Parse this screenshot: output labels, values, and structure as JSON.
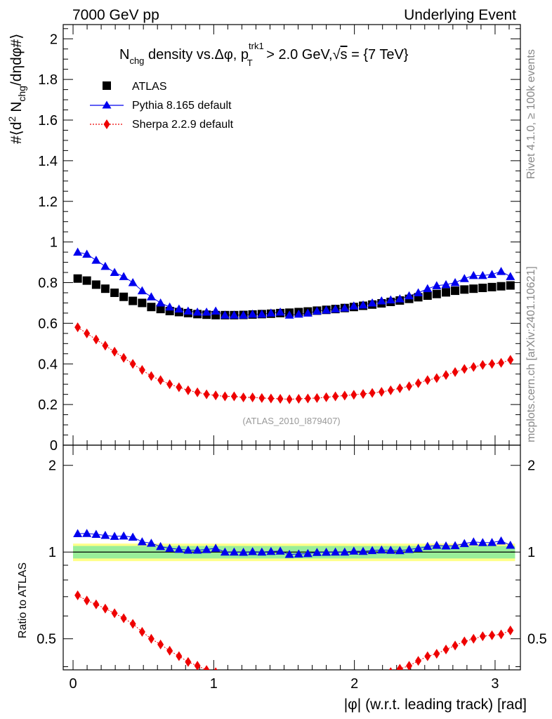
{
  "header": {
    "left": "7000 GeV pp",
    "right": "Underlying Event"
  },
  "side_text": {
    "rivet": "Rivet 4.1.0, ≥ 100k events",
    "mcplots": "mcplots.cern.ch [arXiv:2401.10621]"
  },
  "title": {
    "n": "N",
    "chg_sub": "chg",
    "mid": " density vs.Δφ, p",
    "trk_sup": "trk1",
    "T_sub": "T",
    "cut": " > 2.0 GeV,",
    "sqrt": "√",
    "s": "s",
    "energy": " = {7 TeV}"
  },
  "analysis_tag": "(ATLAS_2010_I879407)",
  "ylabel_top": {
    "pre": "#⟨d",
    "two": "2",
    "n": " N",
    "chg": "chg",
    "post": "/dηdφ#⟩"
  },
  "ylabel_bottom": "Ratio to ATLAS",
  "xlabel": "|φ| (w.r.t. leading track) [rad]",
  "legend": [
    {
      "name": "ATLAS",
      "color": "#000000",
      "marker": "square"
    },
    {
      "name": "Pythia 8.165 default",
      "color": "#0000ee",
      "marker": "triangle"
    },
    {
      "name": "Sherpa 2.2.9 default",
      "color": "#ee0000",
      "marker": "diamond"
    }
  ],
  "chart_data": {
    "type": "scatter",
    "title": "Nchg density vs. Δφ, pT(trk1) > 2.0 GeV, √s = {7 TeV}",
    "xlabel": "|φ| (w.r.t. leading track) [rad]",
    "ylabel": "#⟨d² Nchg/dηdφ#⟩",
    "xlim": [
      -0.07,
      3.18
    ],
    "ylim": [
      0,
      2.07
    ],
    "ratio_ylim": [
      0.39,
      2.35
    ],
    "x_ticks": [
      0,
      1,
      2,
      3
    ],
    "y_ticks": [
      0,
      0.2,
      0.4,
      0.6,
      0.8,
      1,
      1.2,
      1.4,
      1.6,
      1.8,
      2
    ],
    "ratio_ticks": [
      0.5,
      1,
      2
    ],
    "x": [
      0.033,
      0.098,
      0.164,
      0.229,
      0.295,
      0.36,
      0.425,
      0.491,
      0.556,
      0.622,
      0.687,
      0.753,
      0.818,
      0.884,
      0.949,
      1.014,
      1.08,
      1.145,
      1.211,
      1.276,
      1.342,
      1.407,
      1.473,
      1.538,
      1.604,
      1.669,
      1.734,
      1.8,
      1.865,
      1.931,
      1.996,
      2.062,
      2.127,
      2.193,
      2.258,
      2.323,
      2.389,
      2.454,
      2.52,
      2.585,
      2.651,
      2.716,
      2.782,
      2.847,
      2.912,
      2.978,
      3.043,
      3.109
    ],
    "series": [
      {
        "name": "ATLAS",
        "values": [
          0.82,
          0.81,
          0.79,
          0.77,
          0.75,
          0.73,
          0.71,
          0.7,
          0.68,
          0.67,
          0.66,
          0.655,
          0.65,
          0.645,
          0.642,
          0.64,
          0.64,
          0.64,
          0.641,
          0.643,
          0.645,
          0.647,
          0.65,
          0.652,
          0.655,
          0.658,
          0.662,
          0.666,
          0.67,
          0.675,
          0.68,
          0.686,
          0.692,
          0.698,
          0.705,
          0.712,
          0.72,
          0.728,
          0.736,
          0.744,
          0.752,
          0.76,
          0.766,
          0.77,
          0.774,
          0.778,
          0.782,
          0.786
        ]
      },
      {
        "name": "Pythia 8.165 default",
        "values": [
          0.95,
          0.94,
          0.91,
          0.88,
          0.85,
          0.83,
          0.8,
          0.76,
          0.73,
          0.7,
          0.68,
          0.67,
          0.66,
          0.655,
          0.655,
          0.66,
          0.64,
          0.64,
          0.64,
          0.645,
          0.645,
          0.65,
          0.655,
          0.64,
          0.645,
          0.65,
          0.66,
          0.665,
          0.67,
          0.675,
          0.685,
          0.69,
          0.7,
          0.71,
          0.715,
          0.72,
          0.735,
          0.75,
          0.77,
          0.785,
          0.79,
          0.8,
          0.82,
          0.835,
          0.835,
          0.84,
          0.855,
          0.83
        ]
      },
      {
        "name": "Sherpa 2.2.9 default",
        "values": [
          0.58,
          0.55,
          0.52,
          0.49,
          0.46,
          0.43,
          0.4,
          0.37,
          0.34,
          0.32,
          0.3,
          0.285,
          0.27,
          0.26,
          0.25,
          0.245,
          0.24,
          0.24,
          0.235,
          0.235,
          0.232,
          0.23,
          0.228,
          0.226,
          0.228,
          0.23,
          0.232,
          0.236,
          0.24,
          0.244,
          0.248,
          0.252,
          0.257,
          0.262,
          0.27,
          0.28,
          0.29,
          0.305,
          0.32,
          0.33,
          0.345,
          0.36,
          0.375,
          0.385,
          0.395,
          0.4,
          0.405,
          0.42
        ]
      }
    ],
    "ratio_band_inner": 0.05,
    "ratio_band_outer": 0.07
  }
}
